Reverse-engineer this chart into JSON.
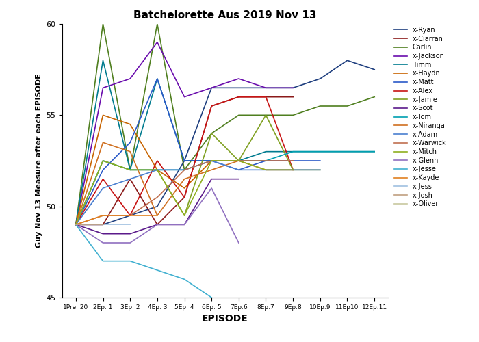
{
  "title": "Batchelorette Aus 2019 Nov 13",
  "xlabel": "EPISODE",
  "ylabel": "Guy Nov 13 Measure after each EPISODE",
  "ylim": [
    45,
    60
  ],
  "xtick_labels": [
    "1Pre..20",
    "2Ep. 1",
    "3Ep. 2",
    "4Ep. 3",
    "5Ep. 4",
    "6Ep. 5",
    "7Ep.6",
    "8Ep.7",
    "9Ep.8",
    "10Ep.9",
    "11Ep10",
    "12Ep.11"
  ],
  "series": [
    {
      "name": "x-Ryan",
      "color": "#1F3F7F",
      "values": [
        49.0,
        49.0,
        49.5,
        50.0,
        52.5,
        56.5,
        56.5,
        56.5,
        56.5,
        57.0,
        58.0,
        57.5
      ]
    },
    {
      "name": "x-Ciarran",
      "color": "#8B1A1A",
      "values": [
        49.0,
        49.0,
        51.5,
        49.0,
        50.5,
        55.5,
        56.0,
        56.0,
        56.0,
        null,
        null,
        null
      ]
    },
    {
      "name": "Carlin",
      "color": "#4F7F1F",
      "values": [
        49.0,
        60.0,
        52.0,
        60.0,
        52.0,
        54.0,
        55.0,
        55.0,
        55.0,
        55.5,
        55.5,
        56.0
      ]
    },
    {
      "name": "x-Jackson",
      "color": "#6A0DAD",
      "values": [
        49.0,
        56.5,
        57.0,
        59.0,
        56.0,
        56.5,
        57.0,
        56.5,
        56.5,
        null,
        null,
        null
      ]
    },
    {
      "name": "Timm",
      "color": "#007B8F",
      "values": [
        49.0,
        58.0,
        52.0,
        57.0,
        52.5,
        52.5,
        52.5,
        53.0,
        53.0,
        53.0,
        53.0,
        53.0
      ]
    },
    {
      "name": "x-Haydn",
      "color": "#C86400",
      "values": [
        49.0,
        55.0,
        54.5,
        52.0,
        51.0,
        52.5,
        52.5,
        52.5,
        52.5,
        null,
        null,
        null
      ]
    },
    {
      "name": "x-Matt",
      "color": "#2B5AC8",
      "values": [
        49.0,
        52.0,
        53.5,
        57.0,
        52.5,
        52.5,
        52.0,
        52.5,
        52.5,
        52.5,
        null,
        null
      ]
    },
    {
      "name": "x-Alex",
      "color": "#C81414",
      "values": [
        49.0,
        51.5,
        49.5,
        52.5,
        50.5,
        55.5,
        56.0,
        56.0,
        52.0,
        null,
        null,
        null
      ]
    },
    {
      "name": "x-Jamie",
      "color": "#7FA020",
      "values": [
        49.0,
        52.5,
        52.0,
        52.0,
        49.5,
        54.0,
        52.5,
        55.0,
        52.0,
        52.0,
        null,
        null
      ]
    },
    {
      "name": "x-Scot",
      "color": "#5B1A8B",
      "values": [
        49.0,
        48.5,
        48.5,
        49.0,
        49.0,
        51.5,
        51.5,
        null,
        null,
        null,
        null,
        null
      ]
    },
    {
      "name": "x-Tom",
      "color": "#00A0B0",
      "values": [
        49.0,
        52.5,
        52.0,
        52.0,
        52.0,
        52.5,
        52.5,
        52.5,
        53.0,
        53.0,
        53.0,
        53.0
      ]
    },
    {
      "name": "x-Niranga",
      "color": "#D07020",
      "values": [
        49.0,
        53.5,
        53.0,
        49.5,
        51.5,
        52.0,
        52.5,
        52.0,
        52.0,
        null,
        null,
        null
      ]
    },
    {
      "name": "x-Adam",
      "color": "#4A7FD0",
      "values": [
        49.0,
        51.0,
        51.5,
        52.0,
        52.0,
        52.5,
        52.0,
        52.0,
        52.0,
        52.0,
        null,
        null
      ]
    },
    {
      "name": "x-Warwick",
      "color": "#C07050",
      "values": [
        49.0,
        49.5,
        49.5,
        50.5,
        52.0,
        52.5,
        52.5,
        52.5,
        52.5,
        null,
        null,
        null
      ]
    },
    {
      "name": "x-Mitch",
      "color": "#8FAF20",
      "values": [
        49.0,
        52.5,
        52.0,
        52.0,
        49.5,
        52.5,
        52.5,
        52.0,
        52.0,
        null,
        null,
        null
      ]
    },
    {
      "name": "x-Glenn",
      "color": "#9070C0",
      "values": [
        49.0,
        48.0,
        48.0,
        49.0,
        49.0,
        51.0,
        48.0,
        null,
        null,
        null,
        null,
        null
      ]
    },
    {
      "name": "x-Jesse",
      "color": "#40B0D0",
      "values": [
        49.0,
        47.0,
        47.0,
        46.5,
        46.0,
        45.0,
        null,
        null,
        null,
        null,
        null,
        null
      ]
    },
    {
      "name": "x-Kayde",
      "color": "#E08020",
      "values": [
        49.0,
        49.5,
        49.5,
        49.5,
        null,
        null,
        null,
        null,
        null,
        null,
        null,
        null
      ]
    },
    {
      "name": "x-Jess",
      "color": "#A0C0E0",
      "values": [
        49.0,
        49.0,
        49.0,
        null,
        null,
        null,
        null,
        null,
        null,
        null,
        null,
        null
      ]
    },
    {
      "name": "x-Josh",
      "color": "#C0A080",
      "values": [
        49.0,
        49.0,
        null,
        null,
        null,
        null,
        null,
        null,
        null,
        null,
        null,
        null
      ]
    },
    {
      "name": "x-Oliver",
      "color": "#C8C8A0",
      "values": [
        49.0,
        null,
        null,
        null,
        null,
        null,
        null,
        null,
        null,
        null,
        null,
        null
      ]
    }
  ]
}
